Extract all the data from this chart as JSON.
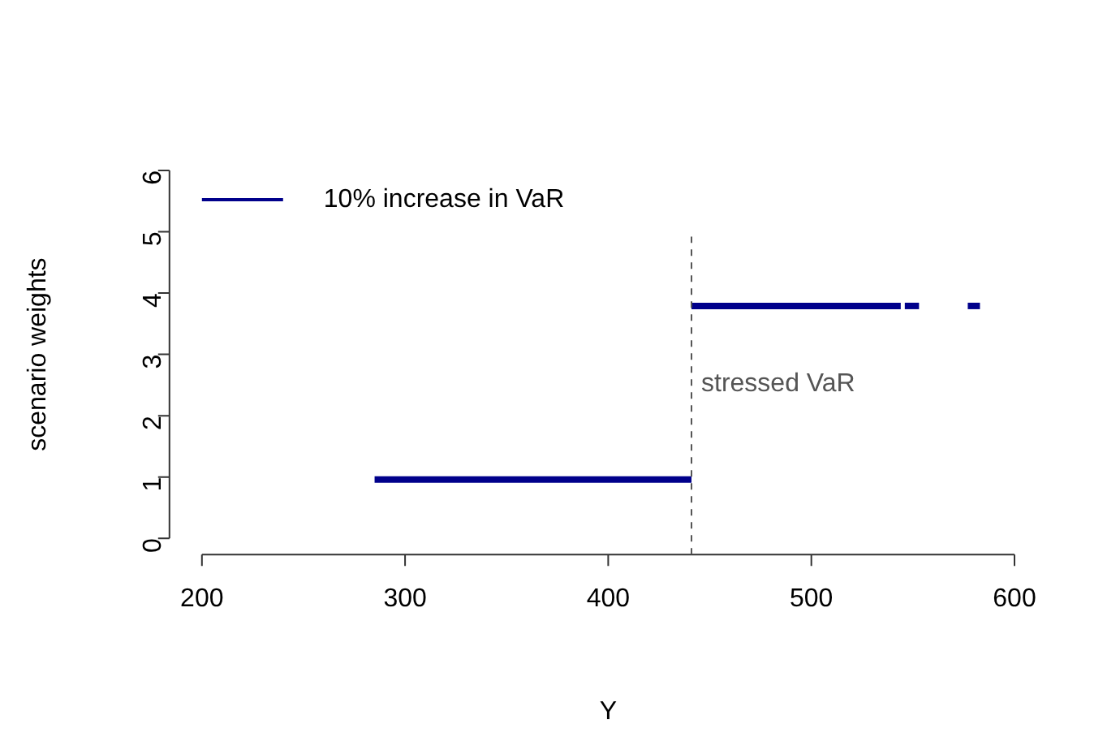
{
  "chart_data": {
    "type": "line",
    "xlabel": "Y",
    "ylabel": "scenario weights",
    "series": [
      {
        "name": "10% increase in VaR",
        "color": "#00008b",
        "x": [
          285,
          441
        ],
        "values": [
          0.96,
          0.96
        ]
      },
      {
        "color": "#00008b",
        "x": [
          441,
          544
        ],
        "values": [
          3.79,
          3.79
        ]
      },
      {
        "color": "#00008b",
        "x": [
          546,
          553
        ],
        "values": [
          3.79,
          3.79
        ]
      },
      {
        "color": "#00008b",
        "x": [
          577,
          583
        ],
        "values": [
          3.79,
          3.79
        ]
      }
    ],
    "xlim": [
      200,
      600
    ],
    "xticks": [
      200,
      300,
      400,
      500,
      600
    ],
    "ylim": [
      0,
      6
    ],
    "yticks": [
      0,
      1,
      2,
      3,
      4,
      5,
      6
    ],
    "ref_lines": [
      {
        "axis": "x",
        "value": 441,
        "label": "stressed VaR",
        "color": "#555555",
        "line_style": "dashed"
      }
    ],
    "grid": false,
    "legend": "top left",
    "marker": "none",
    "line_style": "solid"
  }
}
